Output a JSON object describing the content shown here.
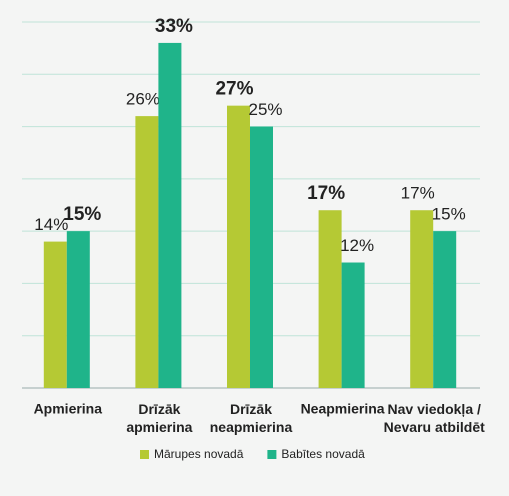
{
  "chart_data": {
    "type": "bar",
    "categories": [
      "Apmierina",
      [
        "Drīzāk",
        "apmierina"
      ],
      [
        "Drīzāk",
        "neapmierina"
      ],
      "Neapmierina",
      [
        "Nav viedokļa /",
        "Nevaru atbildēt"
      ]
    ],
    "series": [
      {
        "name": "Mārupes novadā",
        "color": "#b5c934",
        "values": [
          14,
          26,
          27,
          17,
          17
        ],
        "value_labels": [
          "14%",
          "26%",
          "27%",
          "17%",
          "17%"
        ],
        "bold_labels": [
          false,
          false,
          true,
          true,
          false
        ]
      },
      {
        "name": "Babītes novadā",
        "color": "#1fb48a",
        "values": [
          15,
          33,
          25,
          12,
          15
        ],
        "value_labels": [
          "15%",
          "33%",
          "25%",
          "12%",
          "15%"
        ],
        "bold_labels": [
          true,
          true,
          false,
          false,
          false
        ]
      }
    ],
    "ylim": [
      0,
      35
    ],
    "yticks": [
      0,
      5,
      10,
      15,
      20,
      25,
      30,
      35
    ],
    "grid": true,
    "legend": "bottom"
  }
}
